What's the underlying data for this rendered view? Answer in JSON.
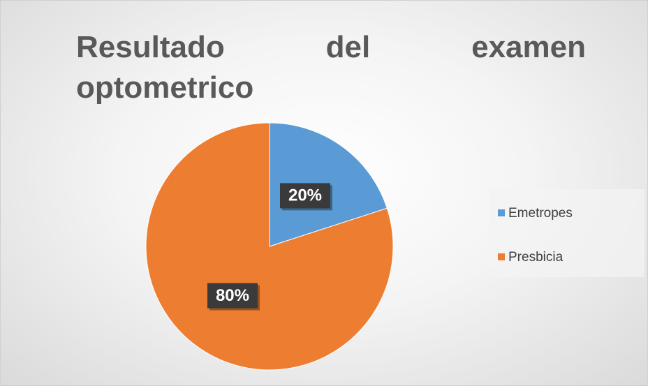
{
  "chart_data": {
    "type": "pie",
    "title": "Resultado del examen optometrico",
    "categories": [
      "Emetropes",
      "Presbicia"
    ],
    "values": [
      20,
      80
    ],
    "value_labels": [
      "20%",
      "80%"
    ],
    "colors": [
      "#5b9bd5",
      "#ed7d31"
    ],
    "legend": "right"
  }
}
